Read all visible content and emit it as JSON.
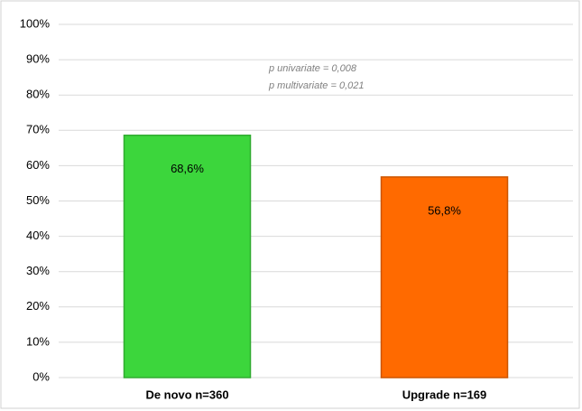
{
  "chart_data": {
    "type": "bar",
    "categories": [
      "De novo n=360",
      "Upgrade n=169"
    ],
    "values": [
      68.6,
      56.8
    ],
    "value_labels": [
      "68,6%",
      "56,8%"
    ],
    "colors": [
      "#3cd63c",
      "#ff6a00"
    ],
    "ylim": [
      0,
      100
    ],
    "yticks": [
      {
        "value": 0,
        "label": "0%"
      },
      {
        "value": 10,
        "label": "10%"
      },
      {
        "value": 20,
        "label": "20%"
      },
      {
        "value": 30,
        "label": "30%"
      },
      {
        "value": 40,
        "label": "40%"
      },
      {
        "value": 50,
        "label": "50%"
      },
      {
        "value": 60,
        "label": "60%"
      },
      {
        "value": 70,
        "label": "70%"
      },
      {
        "value": 80,
        "label": "80%"
      },
      {
        "value": 90,
        "label": "90%"
      },
      {
        "value": 100,
        "label": "100%"
      }
    ],
    "grid": true,
    "annotations": [
      "p univariate = 0,008",
      "p multivariate = 0,021"
    ]
  }
}
